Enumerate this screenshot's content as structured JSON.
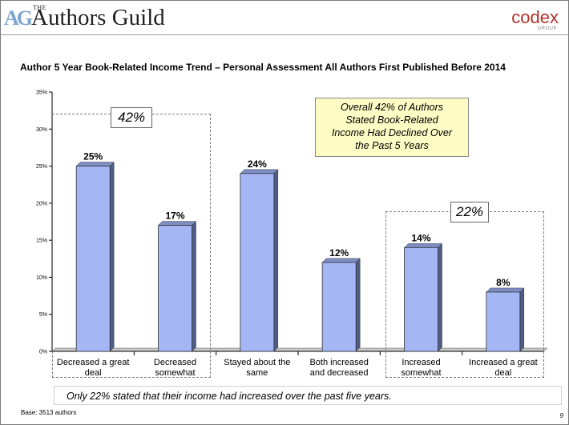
{
  "header": {
    "logo_ag": "AG",
    "logo_the": "THE",
    "logo_name": "Authors Guild",
    "codex_word": "codex",
    "codex_group": "GROUP"
  },
  "callout": {
    "box1": "42%",
    "box2": "22%",
    "summary_lines": [
      "Overall 42% of Authors",
      "Stated Book-Related",
      "Income Had Declined Over",
      "the Past 5 Years"
    ]
  },
  "note": "Only 22% stated that their income had increased over the past five years.",
  "base": "Base: 3513 authors",
  "page_number": "9",
  "colors": {
    "bar_front": "#a4b7f4",
    "bar_side": "#4f5c86",
    "callout_bg": "#fdfcc4",
    "codex_red": "#b5322b"
  },
  "chart_data": {
    "type": "bar",
    "title": "Author 5 Year Book-Related Income Trend – Personal Assessment All Authors First Published Before 2014",
    "categories": [
      [
        "Decreased a great",
        "deal"
      ],
      [
        "Decreased",
        "somewhat"
      ],
      [
        "Stayed about the",
        "same"
      ],
      [
        "Both increased",
        "and decreased"
      ],
      [
        "Increased",
        "somewhat"
      ],
      [
        "Increased a great",
        "deal"
      ]
    ],
    "values": [
      25,
      17,
      24,
      12,
      14,
      8
    ],
    "value_labels": [
      "25%",
      "17%",
      "24%",
      "12%",
      "14%",
      "8%"
    ],
    "ylim": [
      0,
      35
    ],
    "y_ticks": [
      0,
      5,
      10,
      15,
      20,
      25,
      30,
      35
    ],
    "y_tick_labels": [
      "0%",
      "5%",
      "10%",
      "15%",
      "20%",
      "25%",
      "30%",
      "35%"
    ],
    "grid": false,
    "legend": "none"
  }
}
